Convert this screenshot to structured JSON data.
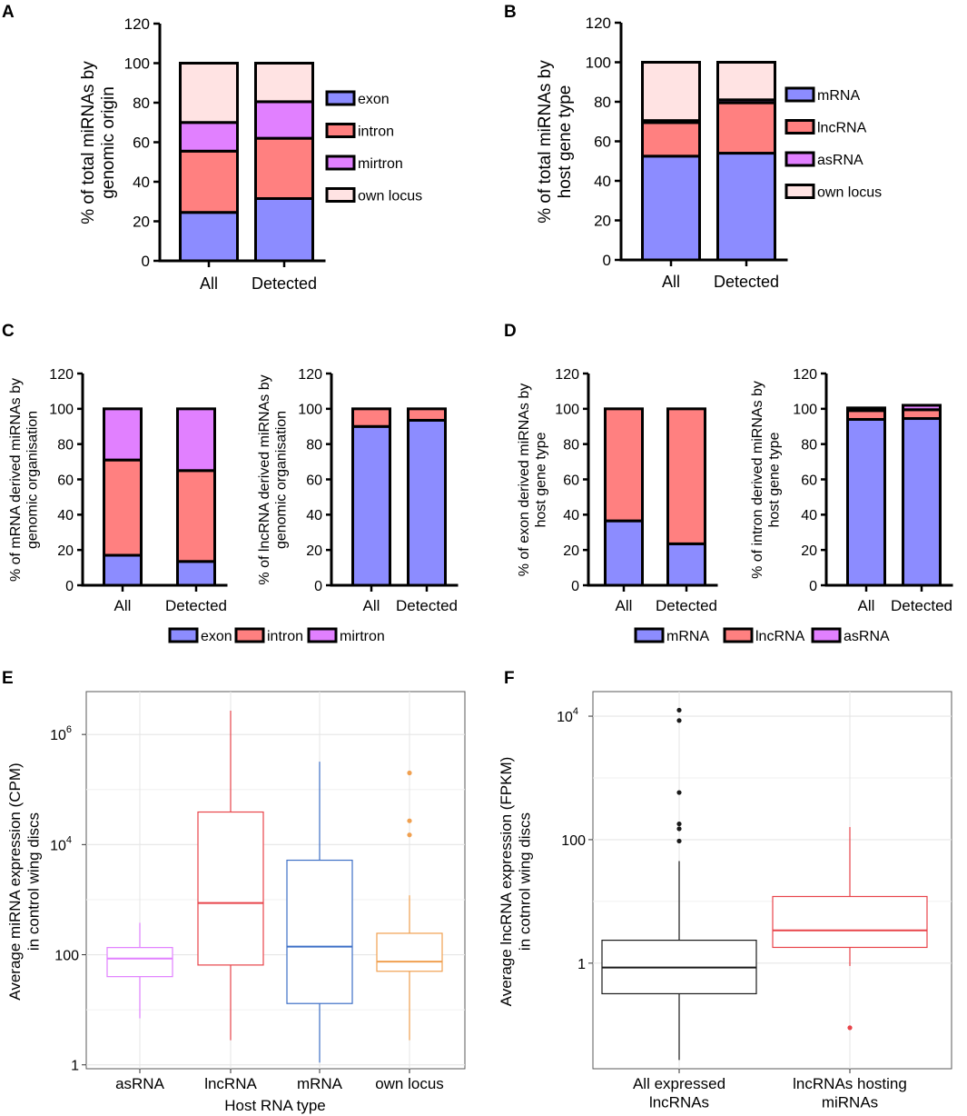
{
  "chart_data": [
    {
      "panel": "A",
      "type": "bar",
      "stacked": true,
      "categories": [
        "All",
        "Detected"
      ],
      "ylabel": [
        "% of total miRNAs by",
        "genomic origin"
      ],
      "ylim": [
        0,
        120
      ],
      "yticks": [
        0,
        20,
        40,
        60,
        80,
        100,
        120
      ],
      "legend": "right",
      "series": [
        {
          "name": "exon",
          "color": "#8c8cff",
          "values": [
            24.5,
            31.5
          ]
        },
        {
          "name": "intron",
          "color": "#ff8080",
          "values": [
            31,
            30.5
          ]
        },
        {
          "name": "mirtron",
          "color": "#e180ff",
          "values": [
            14.5,
            18.5
          ]
        },
        {
          "name": "own locus",
          "color": "#ffe3e3",
          "values": [
            30,
            19.5
          ]
        }
      ]
    },
    {
      "panel": "B",
      "type": "bar",
      "stacked": true,
      "categories": [
        "All",
        "Detected"
      ],
      "ylabel": [
        "% of total miRNAs by",
        "host gene type"
      ],
      "ylim": [
        0,
        120
      ],
      "yticks": [
        0,
        20,
        40,
        60,
        80,
        100,
        120
      ],
      "legend": "right",
      "series": [
        {
          "name": "mRNA",
          "color": "#8c8cff",
          "values": [
            52.5,
            54
          ]
        },
        {
          "name": "lncRNA",
          "color": "#ff8080",
          "values": [
            17,
            25.5
          ]
        },
        {
          "name": "asRNA",
          "color": "#e180ff",
          "values": [
            1,
            1.5
          ]
        },
        {
          "name": "own locus",
          "color": "#ffe3e3",
          "values": [
            29.5,
            19
          ]
        }
      ]
    },
    {
      "panel": "C",
      "type": "bar",
      "stacked": true,
      "categories": [
        "All",
        "Detected"
      ],
      "ylabel": [
        "% of mRNA derived miRNAs by",
        "genomic organisation"
      ],
      "ylim": [
        0,
        120
      ],
      "yticks": [
        0,
        20,
        40,
        60,
        80,
        100,
        120
      ],
      "series": [
        {
          "name": "exon",
          "color": "#8c8cff",
          "values": [
            17,
            13.5
          ]
        },
        {
          "name": "intron",
          "color": "#ff8080",
          "values": [
            54,
            51.5
          ]
        },
        {
          "name": "mirtron",
          "color": "#e180ff",
          "values": [
            29,
            35
          ]
        }
      ]
    },
    {
      "panel": "C-right",
      "type": "bar",
      "stacked": true,
      "categories": [
        "All",
        "Detected"
      ],
      "ylabel": [
        "% of lncRNA derived miRNAs by",
        "genomic organisation"
      ],
      "ylim": [
        0,
        120
      ],
      "yticks": [
        0,
        20,
        40,
        60,
        80,
        100,
        120
      ],
      "series": [
        {
          "name": "exon",
          "color": "#8c8cff",
          "values": [
            90,
            93.5
          ]
        },
        {
          "name": "intron",
          "color": "#ff8080",
          "values": [
            10,
            6.5
          ]
        }
      ]
    },
    {
      "panel": "D",
      "type": "bar",
      "stacked": true,
      "categories": [
        "All",
        "Detected"
      ],
      "ylabel": [
        "% of exon derived miRNAs by",
        "host gene type"
      ],
      "ylim": [
        0,
        120
      ],
      "yticks": [
        0,
        20,
        40,
        60,
        80,
        100,
        120
      ],
      "series": [
        {
          "name": "mRNA",
          "color": "#8c8cff",
          "values": [
            36.5,
            23.5
          ]
        },
        {
          "name": "lncRNA",
          "color": "#ff8080",
          "values": [
            63.5,
            76.5
          ]
        }
      ]
    },
    {
      "panel": "D-right",
      "type": "bar",
      "stacked": true,
      "categories": [
        "All",
        "Detected"
      ],
      "ylabel": [
        "% of intron derived miRNAs by",
        "host gene type"
      ],
      "ylim": [
        0,
        120
      ],
      "yticks": [
        0,
        20,
        40,
        60,
        80,
        100,
        120
      ],
      "series": [
        {
          "name": "mRNA",
          "color": "#8c8cff",
          "values": [
            94,
            94.5
          ]
        },
        {
          "name": "lncRNA",
          "color": "#ff8080",
          "values": [
            5,
            5
          ]
        },
        {
          "name": "asRNA",
          "color": "#e180ff",
          "values": [
            1.5,
            2.5
          ]
        }
      ]
    },
    {
      "panel": "E",
      "type": "boxplot",
      "yscale": "log10",
      "categories": [
        "asRNA",
        "lncRNA",
        "mRNA",
        "own locus"
      ],
      "xlabel": "Host RNA type",
      "ylabel": [
        "Average miRNA expression (CPM)",
        "in control wing discs"
      ],
      "ylim": [
        0.85,
        6000000
      ],
      "yticks": [
        {
          "value": 1,
          "base": "1",
          "exp": ""
        },
        {
          "value": 100,
          "base": "100",
          "exp": ""
        },
        {
          "value": 10000,
          "base": "10",
          "exp": "4"
        },
        {
          "value": 1000000,
          "base": "10",
          "exp": "6"
        }
      ],
      "boxes": [
        {
          "category": "asRNA",
          "color": "#e180ff",
          "min": 7,
          "q1": 40,
          "median": 85,
          "q3": 135,
          "max": 380,
          "outliers": []
        },
        {
          "category": "lncRNA",
          "color": "#e8444a",
          "min": 2.8,
          "q1": 65,
          "median": 870,
          "q3": 39000,
          "max": 2700000,
          "outliers": []
        },
        {
          "category": "mRNA",
          "color": "#3d6fc6",
          "min": 1.1,
          "q1": 13,
          "median": 140,
          "q3": 5200,
          "max": 320000,
          "outliers": []
        },
        {
          "category": "own locus",
          "color": "#f0a050",
          "min": 2.8,
          "q1": 50,
          "median": 75,
          "q3": 245,
          "max": 1200,
          "outliers": [
            15000,
            27000,
            200000
          ]
        }
      ]
    },
    {
      "panel": "F",
      "type": "boxplot",
      "yscale": "log10",
      "categories": [
        "All expressed\nlncRNAs",
        "lncRNAs hosting\nmiRNAs"
      ],
      "xlabel": "",
      "ylabel": [
        "Average lncRNA expression (FPKM)",
        "in cotnrol wing discs"
      ],
      "ylim": [
        0.0195,
        25000
      ],
      "yticks": [
        {
          "value": 1,
          "base": "1",
          "exp": ""
        },
        {
          "value": 100,
          "base": "100",
          "exp": ""
        },
        {
          "value": 10000,
          "base": "10",
          "exp": "4"
        }
      ],
      "boxes": [
        {
          "category": "All expressed lncRNAs",
          "color": "#1a1a1a",
          "min": 0.027,
          "q1": 0.32,
          "median": 0.85,
          "q3": 2.35,
          "max": 45,
          "outliers": [
            95,
            150,
            180,
            580,
            8500,
            12500
          ]
        },
        {
          "category": "lncRNAs hosting miRNAs",
          "color": "#e8444a",
          "min": 0.9,
          "q1": 1.8,
          "median": 3.4,
          "q3": 12,
          "max": 160,
          "outliers": [
            0.09
          ]
        }
      ]
    }
  ],
  "panel_labels": [
    "A",
    "B",
    "C",
    "D",
    "E",
    "F"
  ],
  "legends": {
    "C": [
      {
        "name": "exon",
        "color": "#8c8cff"
      },
      {
        "name": "intron",
        "color": "#ff8080"
      },
      {
        "name": "mirtron",
        "color": "#e180ff"
      }
    ],
    "D": [
      {
        "name": "mRNA",
        "color": "#8c8cff"
      },
      {
        "name": "lncRNA",
        "color": "#ff8080"
      },
      {
        "name": "asRNA",
        "color": "#e180ff"
      }
    ]
  }
}
